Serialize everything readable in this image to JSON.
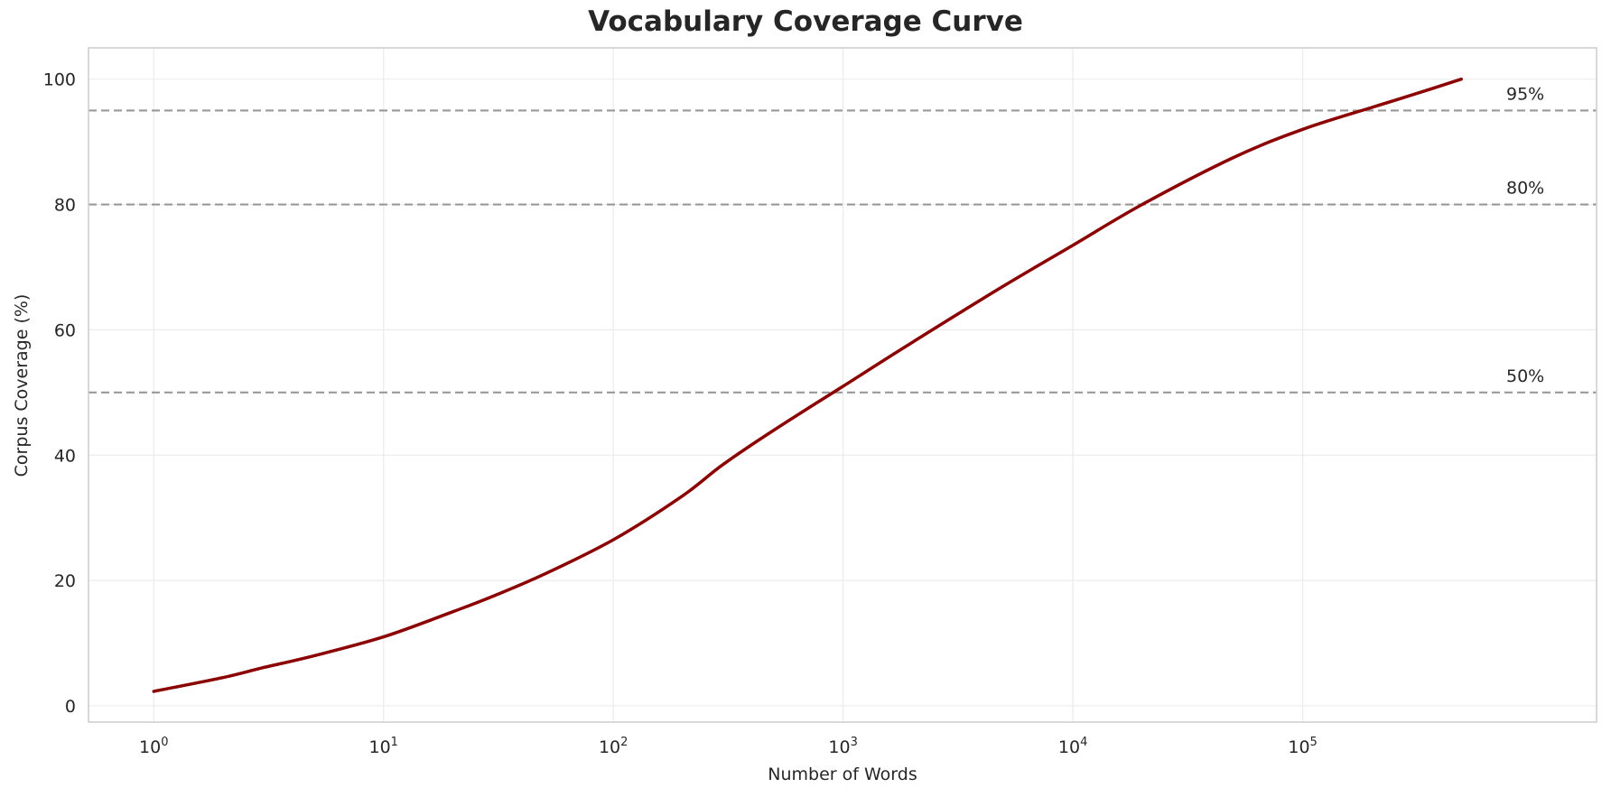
{
  "chart_data": {
    "type": "line",
    "title": "Vocabulary Coverage Curve",
    "xlabel": "Number of Words",
    "ylabel": "Corpus Coverage (%)",
    "xscale": "log",
    "xlim": [
      0.52,
      1900000
    ],
    "ylim": [
      -2.6,
      105
    ],
    "grid": true,
    "legend": null,
    "x_ticks": [
      1,
      10,
      100,
      1000,
      10000,
      100000
    ],
    "x_tick_labels": [
      "10^0",
      "10^1",
      "10^2",
      "10^3",
      "10^4",
      "10^5"
    ],
    "y_ticks": [
      0,
      20,
      40,
      60,
      80,
      100
    ],
    "y_tick_labels": [
      "0",
      "20",
      "40",
      "60",
      "80",
      "100"
    ],
    "series": [
      {
        "name": "Coverage",
        "color": "#8b0000",
        "x": [
          1,
          2,
          3,
          5,
          10,
          20,
          30,
          50,
          100,
          200,
          300,
          500,
          1000,
          2000,
          5000,
          10000,
          20000,
          50000,
          100000,
          200000,
          300000,
          490000
        ],
        "y": [
          2.3,
          4.5,
          6.1,
          8.0,
          11.0,
          15.0,
          17.5,
          21.0,
          26.5,
          33.5,
          38.5,
          44.0,
          51.0,
          58.0,
          67.0,
          73.5,
          80.0,
          87.5,
          92.0,
          95.5,
          97.5,
          100.0
        ]
      }
    ],
    "reference_lines": [
      {
        "y": 50,
        "label": "50%",
        "style": "dashed",
        "color": "#999999"
      },
      {
        "y": 80,
        "label": "80%",
        "style": "dashed",
        "color": "#999999"
      },
      {
        "y": 95,
        "label": "95%",
        "style": "dashed",
        "color": "#999999"
      }
    ]
  },
  "colors": {
    "line": "#8b0000",
    "reference": "#999999",
    "grid": "#ebebeb",
    "spine": "#cccccc"
  }
}
